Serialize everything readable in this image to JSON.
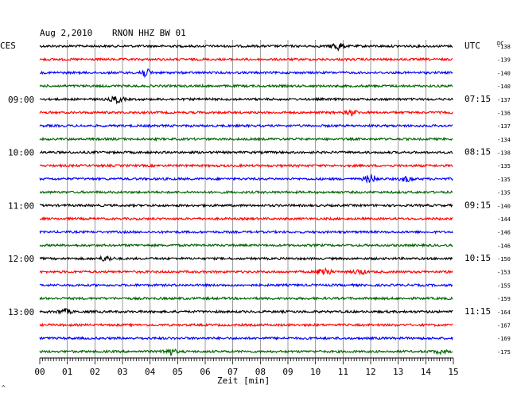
{
  "header": {
    "date": "Aug 2,2010",
    "station": "RNON HHZ BW 01",
    "left_tz": "CES",
    "right_tz": "UTC",
    "dc_label": "DC"
  },
  "footer": {
    "xlabel": "Zeit [min]",
    "corner_mark": "^"
  },
  "colors": {
    "cycle": [
      "#000000",
      "#ff0000",
      "#0000ff",
      "#006400"
    ],
    "grid": "#7f7f7f",
    "axis": "#000000"
  },
  "chart_data": {
    "type": "line",
    "description_units": "helicorder: each trace = 15 minutes, x in minutes",
    "xlim": [
      0,
      15
    ],
    "x_ticks": [
      "00",
      "01",
      "02",
      "03",
      "04",
      "05",
      "06",
      "07",
      "08",
      "09",
      "10",
      "11",
      "12",
      "13",
      "14",
      "15"
    ],
    "trace_count": 24,
    "left_hour_labels": [
      {
        "trace": 4,
        "text": "09:00"
      },
      {
        "trace": 8,
        "text": "10:00"
      },
      {
        "trace": 12,
        "text": "11:00"
      },
      {
        "trace": 16,
        "text": "12:00"
      },
      {
        "trace": 20,
        "text": "13:00"
      }
    ],
    "right_time_labels": [
      {
        "trace": 0,
        "text": "UTC"
      },
      {
        "trace": 4,
        "text": "07:15"
      },
      {
        "trace": 8,
        "text": "08:15"
      },
      {
        "trace": 12,
        "text": "09:15"
      },
      {
        "trace": 16,
        "text": "10:15"
      },
      {
        "trace": 20,
        "text": "11:15"
      }
    ],
    "dc_offsets": [
      "-138",
      "-139",
      "-140",
      "-140",
      "-137",
      "-136",
      "-137",
      "-134",
      "-138",
      "-135",
      "-135",
      "-135",
      "-140",
      "-144",
      "-146",
      "-146",
      "-150",
      "-153",
      "-155",
      "-159",
      "-164",
      "-167",
      "-169",
      "-175"
    ],
    "events": [
      {
        "trace": 0,
        "minute": 10.8,
        "amp": 5
      },
      {
        "trace": 2,
        "minute": 3.8,
        "amp": 5
      },
      {
        "trace": 4,
        "minute": 2.8,
        "amp": 4
      },
      {
        "trace": 5,
        "minute": 11.3,
        "amp": 3
      },
      {
        "trace": 10,
        "minute": 12.0,
        "amp": 5
      },
      {
        "trace": 10,
        "minute": 13.3,
        "amp": 3
      },
      {
        "trace": 16,
        "minute": 2.4,
        "amp": 3
      },
      {
        "trace": 17,
        "minute": 10.3,
        "amp": 6
      },
      {
        "trace": 17,
        "minute": 11.6,
        "amp": 3
      },
      {
        "trace": 20,
        "minute": 0.9,
        "amp": 3
      },
      {
        "trace": 23,
        "minute": 4.7,
        "amp": 4
      },
      {
        "trace": 23,
        "minute": 14.5,
        "amp": 2
      }
    ]
  }
}
